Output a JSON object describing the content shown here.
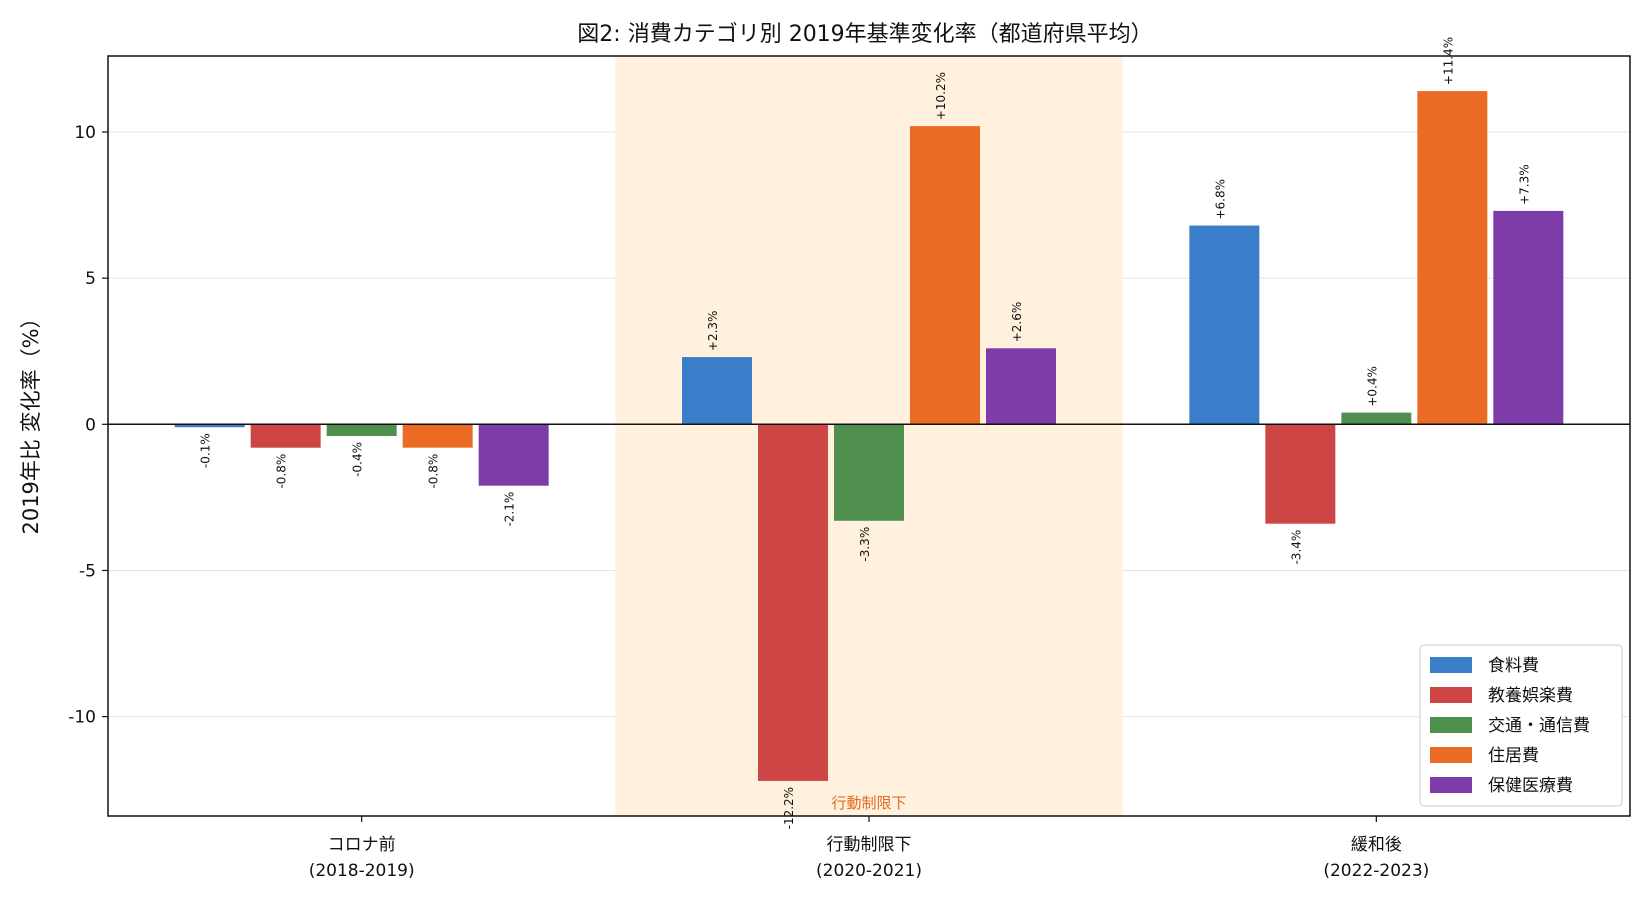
{
  "chart_data": {
    "type": "bar",
    "title": "図2: 消費カテゴリ別 2019年基準変化率（都道府県平均）",
    "xlabel": "",
    "ylabel": "2019年比 変化率（%）",
    "ylim": [
      -13.4,
      12.6
    ],
    "yticks": [
      -10,
      -5,
      0,
      5,
      10
    ],
    "grid": "y",
    "legend_position": "lower-right",
    "categories": [
      "コロナ前\n(2018-2019)",
      "行動制限下\n(2020-2021)",
      "緩和後\n(2022-2023)"
    ],
    "highlight": {
      "category_index": 1,
      "label": "行動制限下",
      "fill_color": "#fff1dd",
      "label_color": "#e06a1f"
    },
    "series": [
      {
        "name": "食料費",
        "color": "#3a7dc9",
        "values": [
          -0.1,
          2.3,
          6.8
        ],
        "labels": [
          "-0.1%",
          "+2.3%",
          "+6.8%"
        ]
      },
      {
        "name": "教養娯楽費",
        "color": "#cd4645",
        "values": [
          -0.8,
          -12.2,
          -3.4
        ],
        "labels": [
          "-0.8%",
          "-12.2%",
          "-3.4%"
        ]
      },
      {
        "name": "交通・通信費",
        "color": "#4e8f4e",
        "values": [
          -0.4,
          -3.3,
          0.4
        ],
        "labels": [
          "-0.4%",
          "-3.3%",
          "+0.4%"
        ]
      },
      {
        "name": "住居費",
        "color": "#ea6c24",
        "values": [
          -0.8,
          10.2,
          11.4
        ],
        "labels": [
          "-0.8%",
          "+10.2%",
          "+11.4%"
        ]
      },
      {
        "name": "保健医療費",
        "color": "#7e3ca9",
        "values": [
          -2.1,
          2.6,
          7.3
        ],
        "labels": [
          "-2.1%",
          "+2.6%",
          "+7.3%"
        ]
      }
    ]
  }
}
